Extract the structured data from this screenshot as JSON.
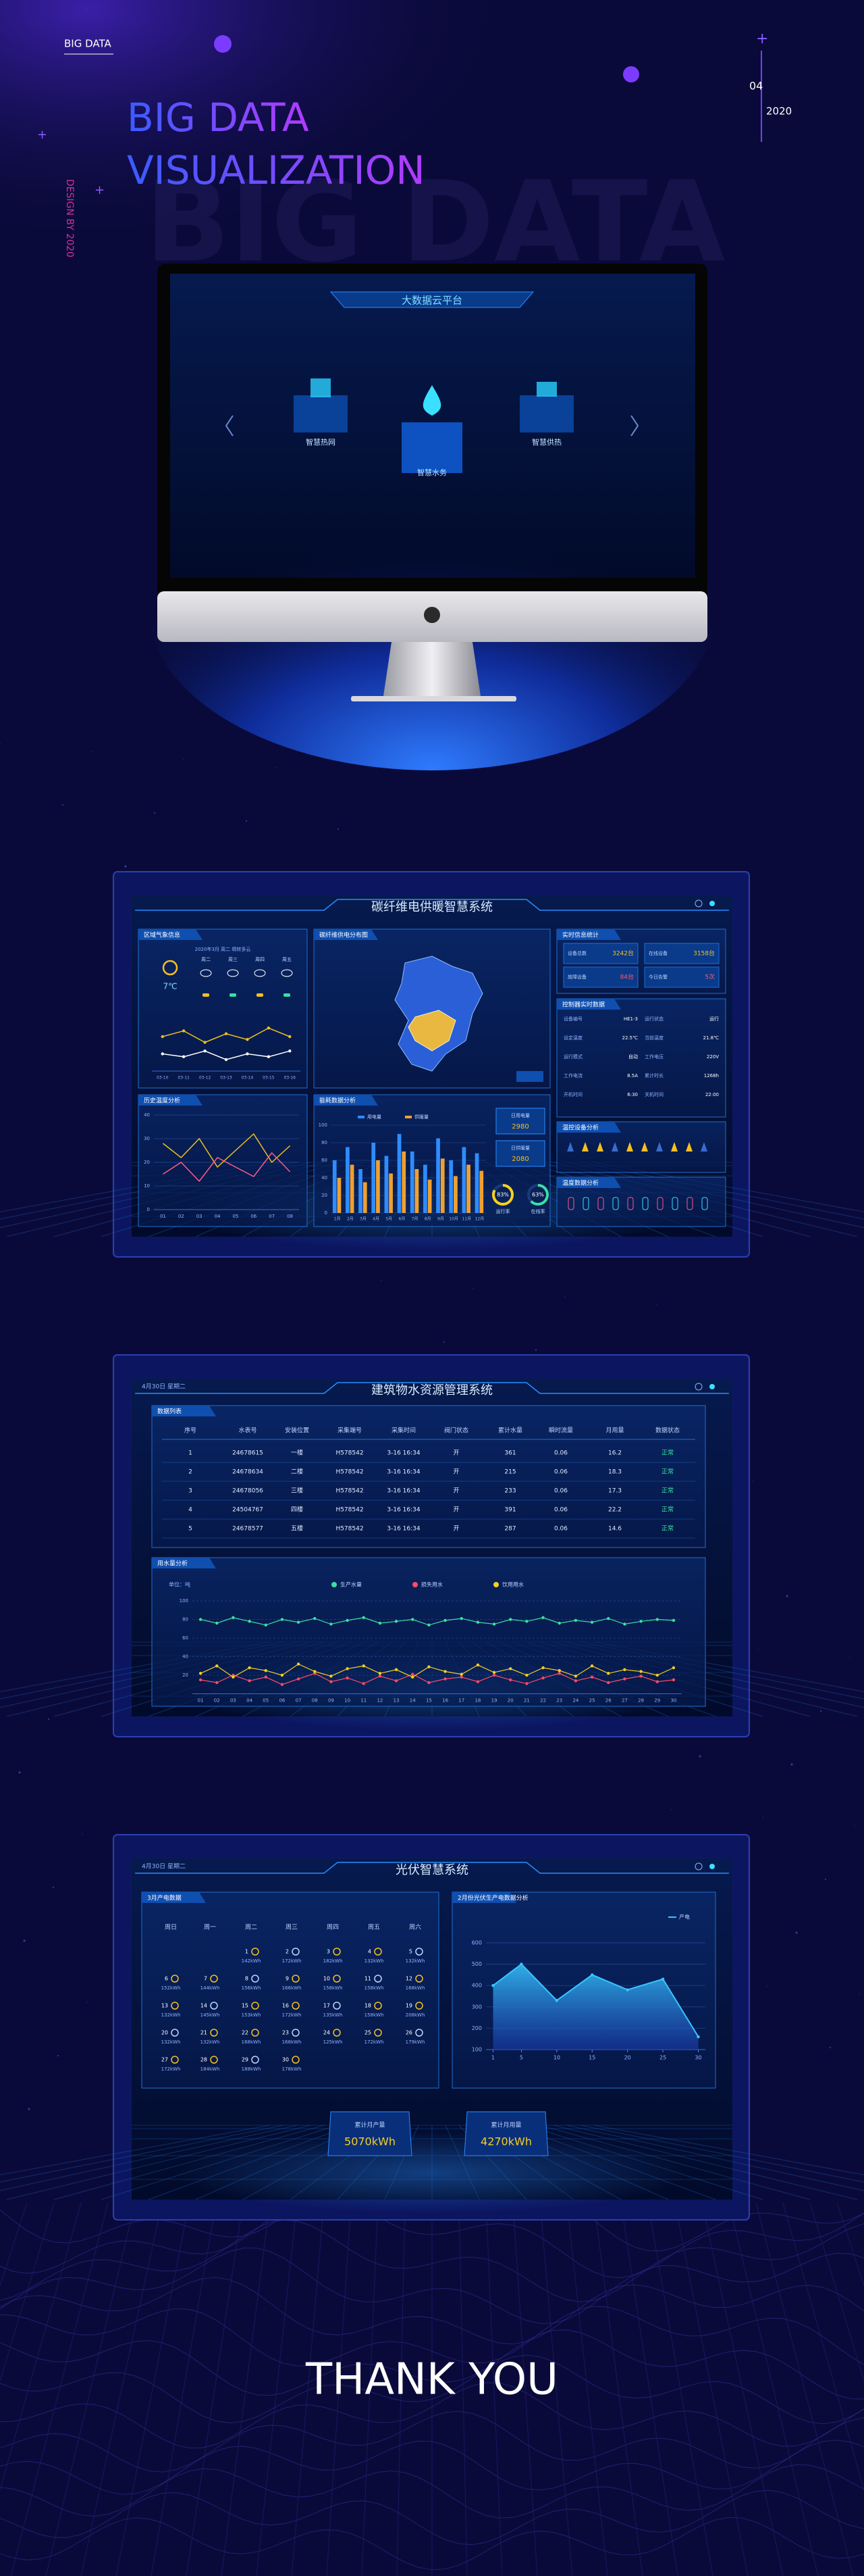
{
  "header": {
    "label": "BIG DATA",
    "title_line1": "BIG DATA",
    "title_line2": "VISUALIZATION",
    "watermark": "BIG DATA",
    "side_text": "DESIGN BY 2020",
    "page_number": "04",
    "year": "2020"
  },
  "monitor": {
    "title": "大数据云平台",
    "modules": [
      "智慧热网",
      "智慧水务",
      "智慧供热"
    ]
  },
  "dashboard1": {
    "title": "碳纤维电供暖智慧系统",
    "panels": [
      "区域气象信息",
      "历史温度分析",
      "碳纤维供电分布图",
      "能耗数据分析",
      "实时信息统计",
      "控制器实时数据",
      "温控设备分析",
      "温度数据分析"
    ],
    "weather": {
      "location": "2020年3月 周二 晴转多云",
      "temperature": "7℃",
      "days": [
        "周二",
        "周三",
        "周四",
        "周五"
      ],
      "chart": {
        "type": "line",
        "categories": [
          "03-10",
          "03-11",
          "03-12",
          "03-13",
          "03-14",
          "03-15",
          "03-16"
        ],
        "series": [
          {
            "color": "#f0c020",
            "values": [
              12,
              14,
              10,
              13,
              11,
              15,
              12
            ]
          },
          {
            "color": "#ffffff",
            "values": [
              6,
              5,
              7,
              4,
              6,
              5,
              7
            ]
          }
        ],
        "ylim": [
          0,
          20
        ]
      }
    },
    "history": {
      "type": "line",
      "categories": [
        "01",
        "02",
        "03",
        "04",
        "05",
        "06",
        "07",
        "08"
      ],
      "series": [
        {
          "color": "#f0c020",
          "values": [
            28,
            22,
            30,
            18,
            25,
            32,
            20,
            27
          ]
        },
        {
          "color": "#ff5a8a",
          "values": [
            15,
            20,
            12,
            22,
            18,
            14,
            24,
            16
          ]
        }
      ],
      "ylim": [
        0,
        40
      ],
      "yticks": [
        0,
        10,
        20,
        30,
        40
      ]
    },
    "energy": {
      "type": "bar",
      "categories": [
        "1月",
        "2月",
        "3月",
        "4月",
        "5月",
        "6月",
        "7月",
        "8月",
        "9月",
        "10月",
        "11月",
        "12月"
      ],
      "series": [
        {
          "name": "用电量",
          "color": "#2f8cff",
          "values": [
            60,
            75,
            50,
            80,
            65,
            90,
            70,
            55,
            85,
            60,
            75,
            68
          ]
        },
        {
          "name": "供暖量",
          "color": "#f0a030",
          "values": [
            40,
            55,
            35,
            60,
            45,
            70,
            50,
            38,
            62,
            42,
            55,
            48
          ]
        }
      ],
      "ylim": [
        0,
        100
      ],
      "yticks": [
        0,
        20,
        40,
        60,
        80,
        100
      ]
    },
    "energy_stats": [
      {
        "label": "日用电量",
        "value": "2980"
      },
      {
        "label": "日供暖量",
        "value": "2080"
      }
    ],
    "gauges": {
      "labels": [
        "运行率",
        "在线率"
      ],
      "values": [
        83,
        63
      ],
      "value_labels": [
        "83%",
        "63%"
      ],
      "lim": [
        0,
        100
      ]
    },
    "stats": [
      {
        "label": "设备总数",
        "value": "3242台"
      },
      {
        "label": "在线设备",
        "value": "3158台"
      },
      {
        "label": "故障设备",
        "value": "84台"
      },
      {
        "label": "今日告警",
        "value": "5次"
      }
    ],
    "controller": [
      [
        "设备编号",
        "HE1-3"
      ],
      [
        "运行状态",
        "运行"
      ],
      [
        "设定温度",
        "22.5℃"
      ],
      [
        "当前温度",
        "21.8℃"
      ],
      [
        "运行模式",
        "自动"
      ],
      [
        "工作电压",
        "220V"
      ],
      [
        "工作电流",
        "8.5A"
      ],
      [
        "累计时长",
        "1268h"
      ],
      [
        "开机时间",
        "6:30"
      ],
      [
        "关机时间",
        "22:00"
      ]
    ]
  },
  "dashboard2": {
    "title": "建筑物水资源管理系统",
    "date": "4月30日 星期二",
    "table": {
      "title": "数据列表",
      "headers": [
        "序号",
        "水表号",
        "安装位置",
        "采集端号",
        "采集时间",
        "阀门状态",
        "累计水量",
        "瞬时流量",
        "月用量",
        "数据状态"
      ],
      "rows": [
        [
          "1",
          "24678615",
          "一楼",
          "H578542",
          "3-16 16:34",
          "开",
          "361",
          "0.06",
          "16.2",
          "正常"
        ],
        [
          "2",
          "24678634",
          "二楼",
          "H578542",
          "3-16 16:34",
          "开",
          "215",
          "0.06",
          "18.3",
          "正常"
        ],
        [
          "3",
          "24678056",
          "三楼",
          "H578542",
          "3-16 16:34",
          "开",
          "233",
          "0.06",
          "17.3",
          "正常"
        ],
        [
          "4",
          "24504767",
          "四楼",
          "H578542",
          "3-16 16:34",
          "开",
          "391",
          "0.06",
          "22.2",
          "正常"
        ],
        [
          "5",
          "24678577",
          "五楼",
          "H578542",
          "3-16 16:34",
          "开",
          "287",
          "0.06",
          "14.6",
          "正常"
        ]
      ]
    },
    "chart": {
      "type": "line",
      "title": "用水量分析",
      "unit": "单位：吨",
      "categories": [
        "01",
        "02",
        "03",
        "04",
        "05",
        "06",
        "07",
        "08",
        "09",
        "10",
        "11",
        "12",
        "13",
        "14",
        "15",
        "16",
        "17",
        "18",
        "19",
        "20",
        "21",
        "22",
        "23",
        "24",
        "25",
        "26",
        "27",
        "28",
        "29",
        "30"
      ],
      "series": [
        {
          "name": "生产水量",
          "color": "#3ee0a0",
          "values": [
            80,
            76,
            82,
            78,
            74,
            80,
            77,
            81,
            75,
            79,
            82,
            76,
            78,
            80,
            74,
            79,
            81,
            77,
            75,
            80,
            78,
            82,
            76,
            79,
            77,
            81,
            75,
            78,
            80,
            79
          ]
        },
        {
          "name": "损失用水",
          "color": "#ff4a6a",
          "values": [
            15,
            12,
            20,
            14,
            18,
            10,
            16,
            22,
            13,
            17,
            11,
            19,
            14,
            21,
            12,
            16,
            18,
            13,
            20,
            15,
            11,
            17,
            22,
            14,
            18,
            12,
            16,
            19,
            13,
            15
          ]
        },
        {
          "name": "饮用用水",
          "color": "#f5d020",
          "values": [
            22,
            30,
            18,
            28,
            25,
            20,
            32,
            24,
            19,
            27,
            30,
            22,
            26,
            18,
            29,
            24,
            21,
            31,
            23,
            27,
            20,
            28,
            25,
            19,
            30,
            22,
            26,
            24,
            20,
            28
          ]
        }
      ],
      "ylim": [
        0,
        100
      ],
      "yticks": [
        20,
        40,
        60,
        80,
        100
      ]
    }
  },
  "dashboard3": {
    "title": "光伏智慧系统",
    "date": "4月30日 星期二",
    "calendar": {
      "title": "3月产电数据",
      "weekdays": [
        "周日",
        "周一",
        "周二",
        "周三",
        "周四",
        "周五",
        "周六"
      ],
      "weeks": [
        [
          null,
          null,
          {
            "day": "1",
            "value": "142kWh"
          },
          {
            "day": "2",
            "value": "172kWh"
          },
          {
            "day": "3",
            "value": "182kWh"
          },
          {
            "day": "4",
            "value": "132kWh"
          },
          {
            "day": "5",
            "value": "132kWh"
          }
        ],
        [
          {
            "day": "6",
            "value": "152kWh"
          },
          {
            "day": "7",
            "value": "144kWh"
          },
          {
            "day": "8",
            "value": "156kWh"
          },
          {
            "day": "9",
            "value": "166kWh"
          },
          {
            "day": "10",
            "value": "158kWh"
          },
          {
            "day": "11",
            "value": "158kWh"
          },
          {
            "day": "12",
            "value": "168kWh"
          }
        ],
        [
          {
            "day": "13",
            "value": "132kWh"
          },
          {
            "day": "14",
            "value": "145kWh"
          },
          {
            "day": "15",
            "value": "153kWh"
          },
          {
            "day": "16",
            "value": "172kWh"
          },
          {
            "day": "17",
            "value": "135kWh"
          },
          {
            "day": "18",
            "value": "158kWh"
          },
          {
            "day": "19",
            "value": "208kWh"
          }
        ],
        [
          {
            "day": "20",
            "value": "132kWh"
          },
          {
            "day": "21",
            "value": "132kWh"
          },
          {
            "day": "22",
            "value": "168kWh"
          },
          {
            "day": "23",
            "value": "168kWh"
          },
          {
            "day": "24",
            "value": "125kWh"
          },
          {
            "day": "25",
            "value": "172kWh"
          },
          {
            "day": "26",
            "value": "179kWh"
          }
        ],
        [
          {
            "day": "27",
            "value": "172kWh"
          },
          {
            "day": "28",
            "value": "184kWh"
          },
          {
            "day": "29",
            "value": "188kWh"
          },
          {
            "day": "30",
            "value": "178kWh"
          },
          null,
          null,
          null
        ]
      ]
    },
    "chart": {
      "type": "line",
      "title": "2月份光伏生产电数据分析",
      "x": [
        1,
        5,
        10,
        15,
        20,
        25,
        30
      ],
      "xlim": [
        0,
        31
      ],
      "xticks": [
        1,
        5,
        10,
        15,
        20,
        25,
        30
      ],
      "series": [
        {
          "name": "产电",
          "color": "#36c8ff",
          "values": [
            400,
            500,
            330,
            450,
            380,
            430,
            160
          ]
        }
      ],
      "ylim": [
        100,
        600
      ],
      "yticks": [
        100,
        200,
        300,
        400,
        500,
        600
      ]
    },
    "totals": [
      {
        "label": "累计月产量",
        "value": "5070kWh"
      },
      {
        "label": "累计月用量",
        "value": "4270kWh"
      }
    ]
  },
  "footer": {
    "text": "THANK YOU"
  }
}
